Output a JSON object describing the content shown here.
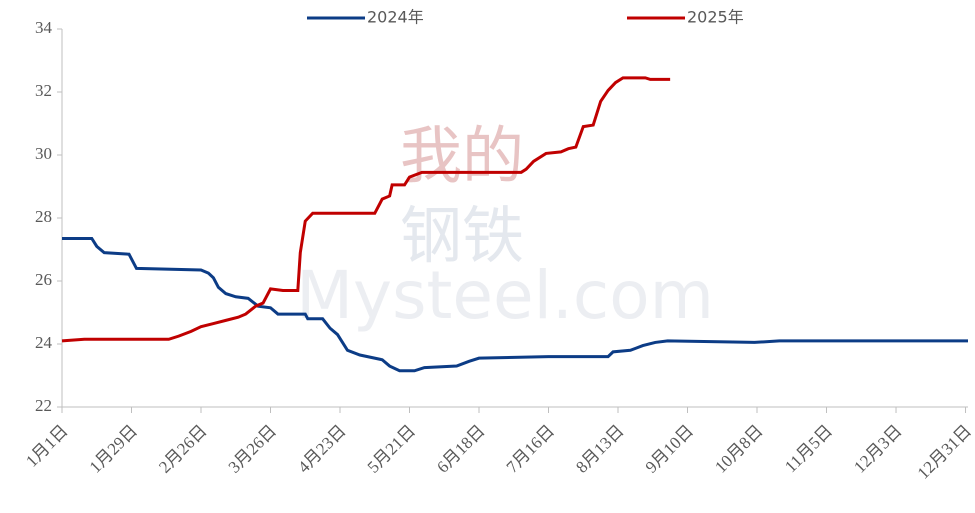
{
  "chart_data": {
    "type": "line",
    "watermark": [
      "我的",
      "钢铁",
      "Mysteel.com"
    ],
    "xlim": [
      1,
      366
    ],
    "xticks": [
      {
        "value": 1,
        "label": "1月1日"
      },
      {
        "value": 29,
        "label": "1月29日"
      },
      {
        "value": 57,
        "label": "2月26日"
      },
      {
        "value": 85,
        "label": "3月26日"
      },
      {
        "value": 113,
        "label": "4月23日"
      },
      {
        "value": 141,
        "label": "5月21日"
      },
      {
        "value": 169,
        "label": "6月18日"
      },
      {
        "value": 197,
        "label": "7月16日"
      },
      {
        "value": 225,
        "label": "8月13日"
      },
      {
        "value": 253,
        "label": "9月10日"
      },
      {
        "value": 281,
        "label": "10月8日"
      },
      {
        "value": 309,
        "label": "11月5日"
      },
      {
        "value": 337,
        "label": "12月3日"
      },
      {
        "value": 365,
        "label": "12月31日"
      }
    ],
    "ylim": [
      22,
      34
    ],
    "yticks": [
      22,
      24,
      26,
      28,
      30,
      32,
      34
    ],
    "grid": false,
    "legend": "top",
    "series": [
      {
        "name": "2024年",
        "color": "#0c3c86",
        "x": [
          1,
          13,
          15,
          18,
          28,
          31,
          57,
          60,
          62,
          64,
          67,
          71,
          76,
          80,
          85,
          88,
          99,
          100,
          106,
          109,
          112,
          116,
          121,
          130,
          133,
          137,
          143,
          147,
          160,
          165,
          169,
          197,
          221,
          223,
          230,
          235,
          240,
          245,
          280,
          290,
          366
        ],
        "values": [
          27.35,
          27.35,
          27.1,
          26.9,
          26.85,
          26.4,
          26.35,
          26.25,
          26.1,
          25.8,
          25.6,
          25.5,
          25.45,
          25.2,
          25.15,
          24.95,
          24.95,
          24.8,
          24.8,
          24.5,
          24.3,
          23.8,
          23.65,
          23.5,
          23.3,
          23.15,
          23.15,
          23.25,
          23.3,
          23.45,
          23.55,
          23.6,
          23.6,
          23.75,
          23.8,
          23.95,
          24.05,
          24.1,
          24.05,
          24.1,
          24.1
        ]
      },
      {
        "name": "2025年",
        "color": "#c00000",
        "x": [
          1,
          10,
          44,
          48,
          53,
          57,
          62,
          67,
          72,
          75,
          79,
          82,
          85,
          90,
          96,
          97,
          99,
          102,
          127,
          130,
          133,
          134,
          139,
          141,
          146,
          150,
          186,
          188,
          191,
          196,
          202,
          205,
          208,
          211,
          215,
          218,
          221,
          224,
          227,
          236,
          238,
          246
        ],
        "values": [
          24.1,
          24.15,
          24.15,
          24.25,
          24.4,
          24.55,
          24.65,
          24.75,
          24.85,
          24.95,
          25.2,
          25.3,
          25.75,
          25.7,
          25.7,
          26.9,
          27.9,
          28.15,
          28.15,
          28.6,
          28.7,
          29.05,
          29.05,
          29.3,
          29.45,
          29.45,
          29.45,
          29.55,
          29.8,
          30.05,
          30.1,
          30.2,
          30.25,
          30.9,
          30.95,
          31.7,
          32.05,
          32.3,
          32.45,
          32.45,
          32.4,
          32.4
        ]
      }
    ]
  }
}
